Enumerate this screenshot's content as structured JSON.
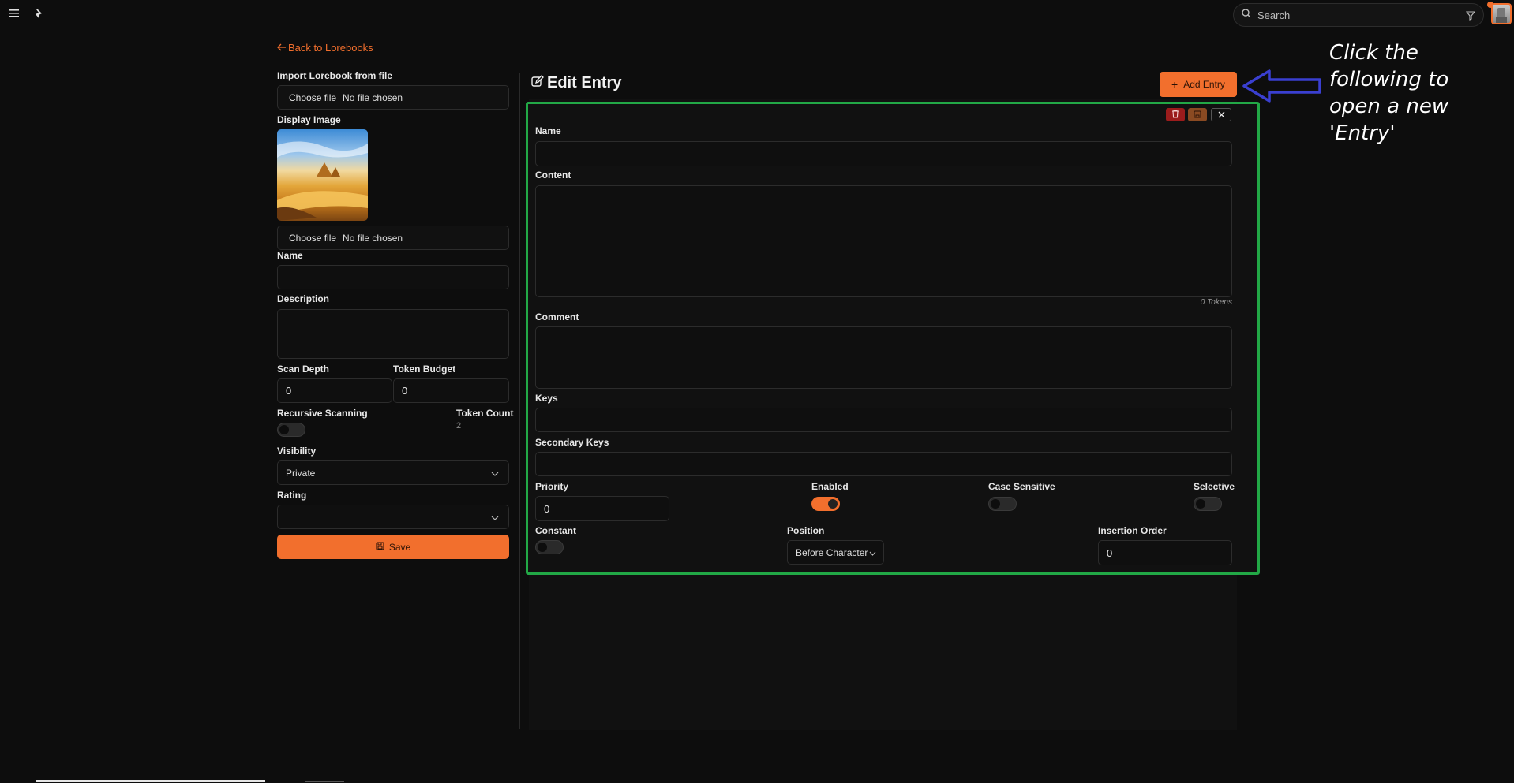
{
  "topbar": {
    "search_placeholder": "Search"
  },
  "back_link": "Back to Lorebooks",
  "left": {
    "import_label": "Import Lorebook from file",
    "choose_file": "Choose file",
    "no_file": "No file chosen",
    "display_image_label": "Display Image",
    "choose_file_2": "Choose file",
    "no_file_2": "No file chosen",
    "name_label": "Name",
    "name_value": "",
    "description_label": "Description",
    "description_value": "",
    "scan_depth_label": "Scan Depth",
    "scan_depth_value": "0",
    "token_budget_label": "Token Budget",
    "token_budget_value": "0",
    "recursive_label": "Recursive Scanning",
    "recursive_on": false,
    "token_count_label": "Token Count",
    "token_count_value": "2",
    "visibility_label": "Visibility",
    "visibility_value": "Private",
    "rating_label": "Rating",
    "rating_value": "",
    "save_label": "Save"
  },
  "editor": {
    "title": "Edit Entry",
    "add_entry_label": "Add Entry",
    "name_label": "Name",
    "name_value": "",
    "content_label": "Content",
    "content_value": "",
    "tokens_text": "0 Tokens",
    "comment_label": "Comment",
    "comment_value": "",
    "keys_label": "Keys",
    "keys_value": "",
    "secondary_keys_label": "Secondary Keys",
    "secondary_keys_value": "",
    "priority_label": "Priority",
    "priority_value": "0",
    "enabled_label": "Enabled",
    "enabled_on": true,
    "case_sensitive_label": "Case Sensitive",
    "case_sensitive_on": false,
    "selective_label": "Selective",
    "selective_on": false,
    "constant_label": "Constant",
    "constant_on": false,
    "position_label": "Position",
    "position_value": "Before Character",
    "insertion_order_label": "Insertion Order",
    "insertion_order_value": "0"
  },
  "annotation": {
    "text_lines": [
      "Click the",
      "following to",
      "open a new",
      "'Entry'"
    ]
  },
  "colors": {
    "accent": "#f26f2d",
    "highlight_box": "#22a846",
    "arrow": "#3a3fd0",
    "background": "#0d0d0d"
  }
}
